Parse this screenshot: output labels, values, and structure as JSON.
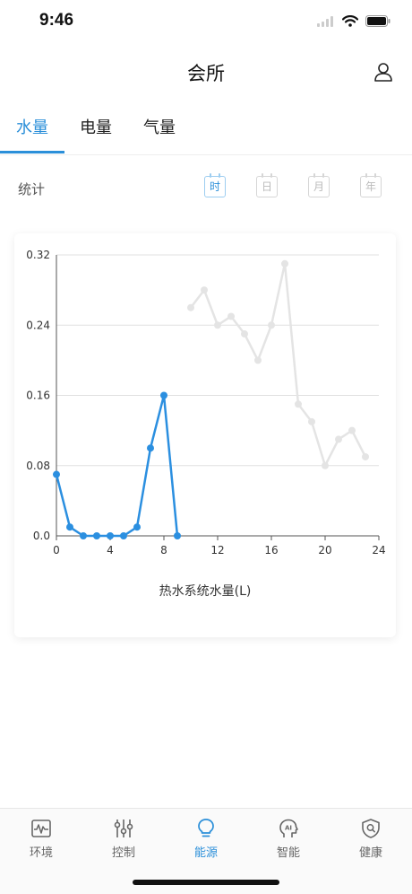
{
  "status_bar": {
    "time": "9:46"
  },
  "header": {
    "title": "会所"
  },
  "tabs": [
    {
      "label": "水量",
      "active": true
    },
    {
      "label": "电量",
      "active": false
    },
    {
      "label": "气量",
      "active": false
    }
  ],
  "stats": {
    "label": "统计",
    "periods": [
      {
        "label": "时",
        "active": true
      },
      {
        "label": "日",
        "active": false
      },
      {
        "label": "月",
        "active": false
      },
      {
        "label": "年",
        "active": false
      }
    ]
  },
  "chart_data": {
    "type": "line",
    "title": "热水系统水量(L)",
    "x_ticks": [
      0,
      4,
      8,
      12,
      16,
      20,
      24
    ],
    "y_ticks": [
      "0.0",
      "0.08",
      "0.16",
      "0.24",
      "0.32"
    ],
    "xlim": [
      0,
      24
    ],
    "ylim": [
      0,
      0.32
    ],
    "grid": true,
    "series": [
      {
        "color": "#2b8fe0",
        "x": [
          0,
          1,
          2,
          3,
          4,
          5,
          6,
          7,
          8,
          9
        ],
        "y": [
          0.07,
          0.01,
          0,
          0,
          0,
          0,
          0.01,
          0.1,
          0.16,
          0
        ]
      },
      {
        "color": "#e4e4e4",
        "x": [
          10,
          11,
          12,
          13,
          14,
          15,
          16,
          17,
          18,
          19,
          20,
          21,
          22,
          23
        ],
        "y": [
          0.26,
          0.28,
          0.24,
          0.25,
          0.23,
          0.2,
          0.24,
          0.31,
          0.15,
          0.13,
          0.08,
          0.11,
          0.12,
          0.09
        ]
      }
    ]
  },
  "tabbar": {
    "items": [
      {
        "label": "环境",
        "icon": "waveform-icon",
        "active": false
      },
      {
        "label": "控制",
        "icon": "sliders-icon",
        "active": false
      },
      {
        "label": "能源",
        "icon": "bulb-icon",
        "active": true
      },
      {
        "label": "智能",
        "icon": "ai-head-icon",
        "active": false
      },
      {
        "label": "健康",
        "icon": "shield-search-icon",
        "active": false
      }
    ]
  },
  "colors": {
    "accent": "#2b8fd9",
    "muted_series": "#e4e4e4"
  }
}
